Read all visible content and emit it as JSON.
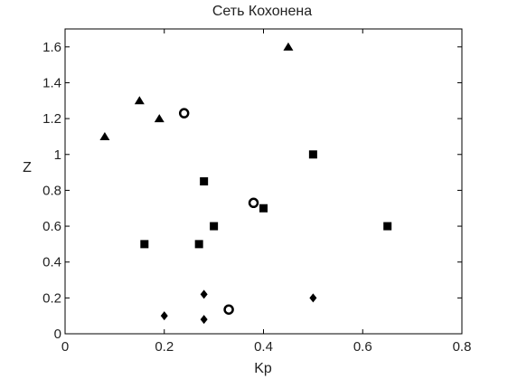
{
  "chart_data": {
    "type": "scatter",
    "title": "Сеть Кохонена",
    "xlabel": "Kp",
    "ylabel": "Z",
    "xlim": [
      0,
      0.8
    ],
    "ylim": [
      0,
      1.7
    ],
    "x_ticks": [
      "0",
      "0.2",
      "0.4",
      "0.6",
      "0.8"
    ],
    "y_ticks": [
      "0",
      "0.2",
      "0.4",
      "0.6",
      "0.8",
      "1",
      "1.2",
      "1.4",
      "1.6"
    ],
    "x_tick_values": [
      0,
      0.2,
      0.4,
      0.6,
      0.8
    ],
    "y_tick_values": [
      0,
      0.2,
      0.4,
      0.6,
      0.8,
      1.0,
      1.2,
      1.4,
      1.6
    ],
    "grid": false,
    "series": [
      {
        "marker": "triangle",
        "points": [
          {
            "x": 0.08,
            "y": 1.1
          },
          {
            "x": 0.15,
            "y": 1.3
          },
          {
            "x": 0.19,
            "y": 1.2
          },
          {
            "x": 0.45,
            "y": 1.6
          }
        ]
      },
      {
        "marker": "square",
        "points": [
          {
            "x": 0.16,
            "y": 0.5
          },
          {
            "x": 0.27,
            "y": 0.5
          },
          {
            "x": 0.28,
            "y": 0.85
          },
          {
            "x": 0.3,
            "y": 0.6
          },
          {
            "x": 0.4,
            "y": 0.7
          },
          {
            "x": 0.5,
            "y": 1.0
          },
          {
            "x": 0.65,
            "y": 0.6
          }
        ]
      },
      {
        "marker": "diamond",
        "points": [
          {
            "x": 0.2,
            "y": 0.1
          },
          {
            "x": 0.28,
            "y": 0.22
          },
          {
            "x": 0.28,
            "y": 0.08
          },
          {
            "x": 0.5,
            "y": 0.2
          }
        ]
      },
      {
        "marker": "circle",
        "points": [
          {
            "x": 0.24,
            "y": 1.23
          },
          {
            "x": 0.38,
            "y": 0.73
          },
          {
            "x": 0.33,
            "y": 0.135
          }
        ]
      }
    ]
  }
}
